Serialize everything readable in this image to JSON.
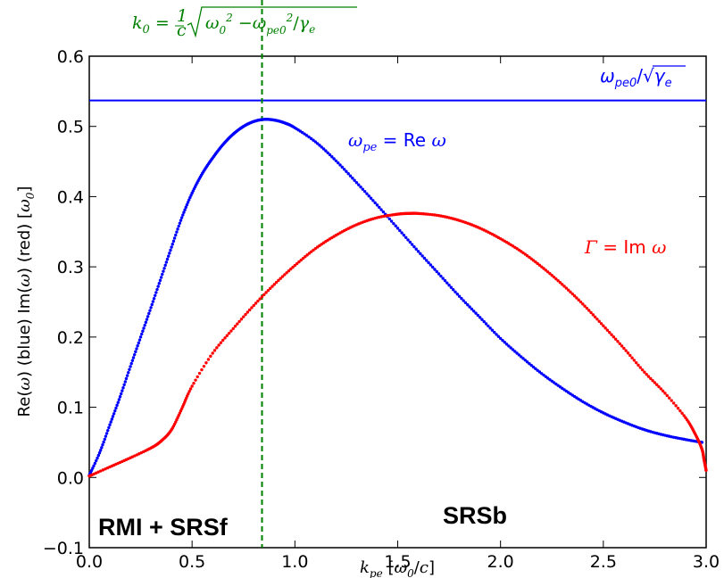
{
  "chart_data": {
    "type": "scatter",
    "xlabel": "k_pe [ω0/c]",
    "ylabel": "Re(ω) (blue) Im(ω) (red) [ω0]",
    "xlim": [
      0.0,
      3.0
    ],
    "ylim": [
      -0.1,
      0.6
    ],
    "xticks": [
      "0.0",
      "0.5",
      "1.0",
      "1.5",
      "2.0",
      "2.5",
      "3.0"
    ],
    "yticks": [
      "−0.1",
      "0.0",
      "0.1",
      "0.2",
      "0.3",
      "0.4",
      "0.5",
      "0.6"
    ],
    "grid": false,
    "series": [
      {
        "name": "ω_pe = Re ω",
        "color": "#0000ff",
        "x": [
          0.0,
          0.05,
          0.1,
          0.15,
          0.2,
          0.25,
          0.3,
          0.35,
          0.4,
          0.45,
          0.5,
          0.55,
          0.6,
          0.65,
          0.7,
          0.75,
          0.8,
          0.85,
          0.9,
          0.95,
          1.0,
          1.1,
          1.2,
          1.3,
          1.4,
          1.5,
          1.6,
          1.7,
          1.8,
          1.9,
          2.0,
          2.1,
          2.2,
          2.3,
          2.4,
          2.5,
          2.6,
          2.7,
          2.8,
          2.9,
          2.98
        ],
        "values": [
          0.003,
          0.035,
          0.075,
          0.115,
          0.158,
          0.2,
          0.242,
          0.285,
          0.328,
          0.37,
          0.405,
          0.433,
          0.455,
          0.474,
          0.489,
          0.5,
          0.507,
          0.51,
          0.509,
          0.505,
          0.498,
          0.478,
          0.451,
          0.42,
          0.388,
          0.355,
          0.322,
          0.29,
          0.258,
          0.228,
          0.198,
          0.172,
          0.148,
          0.127,
          0.108,
          0.092,
          0.079,
          0.068,
          0.06,
          0.054,
          0.05
        ]
      },
      {
        "name": "Γ = Im ω",
        "color": "#ff0000",
        "x": [
          0.0,
          0.1,
          0.2,
          0.3,
          0.35,
          0.4,
          0.45,
          0.5,
          0.6,
          0.7,
          0.8,
          0.9,
          1.0,
          1.1,
          1.2,
          1.3,
          1.4,
          1.5,
          1.55,
          1.6,
          1.7,
          1.8,
          1.9,
          2.0,
          2.1,
          2.2,
          2.3,
          2.4,
          2.5,
          2.6,
          2.7,
          2.8,
          2.9,
          2.95,
          2.98,
          2.99,
          3.0
        ],
        "values": [
          0.002,
          0.015,
          0.028,
          0.042,
          0.052,
          0.068,
          0.098,
          0.13,
          0.177,
          0.212,
          0.245,
          0.275,
          0.302,
          0.326,
          0.345,
          0.36,
          0.37,
          0.375,
          0.376,
          0.376,
          0.373,
          0.366,
          0.355,
          0.34,
          0.322,
          0.3,
          0.275,
          0.247,
          0.216,
          0.184,
          0.15,
          0.12,
          0.085,
          0.06,
          0.04,
          0.025,
          0.01
        ]
      }
    ],
    "hlines": [
      {
        "y": 0.537,
        "color": "#0000ff"
      }
    ],
    "vlines": [
      {
        "x": 0.84,
        "color": "#008000",
        "style": "dashed"
      }
    ],
    "annotations": {
      "top_formula": "k0 = (1/c)√(ω0² − ω²pe0/γe)",
      "hline_label": "ωpe0/√γe",
      "blue_label": "ω_pe = Re ω",
      "red_label": "Γ = Im ω"
    },
    "regions": [
      "RMI + SRSf",
      "SRSb"
    ]
  }
}
